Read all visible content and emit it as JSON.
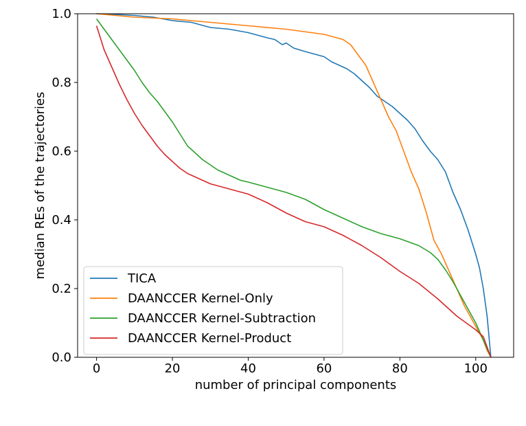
{
  "chart_data": {
    "type": "line",
    "title": "",
    "xlabel": "number of principal components",
    "ylabel": "median REs of the trajectories",
    "xlim": [
      -5,
      110
    ],
    "ylim": [
      0.0,
      1.0
    ],
    "xticks": [
      0,
      20,
      40,
      60,
      80,
      100
    ],
    "yticks": [
      0.0,
      0.2,
      0.4,
      0.6,
      0.8,
      1.0
    ],
    "xtick_labels": [
      "0",
      "20",
      "40",
      "60",
      "80",
      "100"
    ],
    "ytick_labels": [
      "0.0",
      "0.2",
      "0.4",
      "0.6",
      "0.8",
      "1.0"
    ],
    "grid": false,
    "legend_position": "lower-left",
    "series": [
      {
        "name": "TICA",
        "color": "#1f77b4",
        "x": [
          0,
          5,
          10,
          15,
          20,
          25,
          30,
          35,
          40,
          45,
          47,
          49,
          50,
          52,
          55,
          60,
          62,
          64,
          66,
          68,
          70,
          72,
          74,
          76,
          78,
          80,
          82,
          84,
          86,
          88,
          90,
          92,
          94,
          96,
          98,
          100,
          101,
          102,
          103,
          104
        ],
        "y": [
          1.0,
          0.998,
          0.995,
          0.99,
          0.98,
          0.975,
          0.96,
          0.955,
          0.945,
          0.93,
          0.925,
          0.91,
          0.915,
          0.9,
          0.89,
          0.875,
          0.86,
          0.85,
          0.84,
          0.825,
          0.805,
          0.785,
          0.76,
          0.745,
          0.73,
          0.71,
          0.69,
          0.665,
          0.63,
          0.6,
          0.575,
          0.54,
          0.48,
          0.43,
          0.37,
          0.3,
          0.26,
          0.2,
          0.12,
          0.0
        ]
      },
      {
        "name": "DAANCCER Kernel-Only",
        "color": "#ff7f0e",
        "x": [
          0,
          10,
          20,
          30,
          40,
          50,
          60,
          65,
          67,
          69,
          71,
          73,
          75,
          77,
          79,
          81,
          83,
          85,
          87,
          89,
          91,
          93,
          95,
          97,
          99,
          101,
          102,
          103,
          104
        ],
        "y": [
          1.0,
          0.99,
          0.985,
          0.975,
          0.965,
          0.955,
          0.94,
          0.925,
          0.91,
          0.88,
          0.85,
          0.8,
          0.75,
          0.7,
          0.66,
          0.6,
          0.54,
          0.49,
          0.42,
          0.34,
          0.3,
          0.25,
          0.2,
          0.15,
          0.11,
          0.07,
          0.05,
          0.02,
          0.0
        ]
      },
      {
        "name": "DAANCCER Kernel-Subtraction",
        "color": "#2ca02c",
        "x": [
          0,
          2,
          4,
          6,
          8,
          10,
          12,
          14,
          16,
          18,
          20,
          22,
          24,
          26,
          28,
          30,
          32,
          34,
          36,
          38,
          40,
          45,
          50,
          55,
          60,
          65,
          70,
          75,
          80,
          85,
          88,
          90,
          92,
          94,
          96,
          98,
          100,
          102,
          104
        ],
        "y": [
          0.985,
          0.955,
          0.925,
          0.895,
          0.865,
          0.835,
          0.8,
          0.77,
          0.745,
          0.715,
          0.685,
          0.65,
          0.615,
          0.595,
          0.575,
          0.56,
          0.545,
          0.535,
          0.525,
          0.515,
          0.51,
          0.495,
          0.48,
          0.46,
          0.43,
          0.405,
          0.38,
          0.36,
          0.345,
          0.325,
          0.305,
          0.285,
          0.255,
          0.22,
          0.18,
          0.14,
          0.1,
          0.05,
          0.0
        ]
      },
      {
        "name": "DAANCCER Kernel-Product",
        "color": "#d62728",
        "x": [
          0,
          2,
          4,
          6,
          8,
          10,
          12,
          14,
          16,
          18,
          20,
          22,
          24,
          26,
          28,
          30,
          35,
          40,
          45,
          50,
          55,
          60,
          65,
          70,
          75,
          80,
          85,
          90,
          95,
          100,
          102,
          104
        ],
        "y": [
          0.965,
          0.895,
          0.845,
          0.795,
          0.75,
          0.71,
          0.675,
          0.645,
          0.615,
          0.59,
          0.57,
          0.55,
          0.535,
          0.525,
          0.515,
          0.505,
          0.49,
          0.475,
          0.45,
          0.42,
          0.395,
          0.38,
          0.355,
          0.325,
          0.29,
          0.25,
          0.215,
          0.17,
          0.12,
          0.08,
          0.06,
          0.0
        ]
      }
    ]
  }
}
